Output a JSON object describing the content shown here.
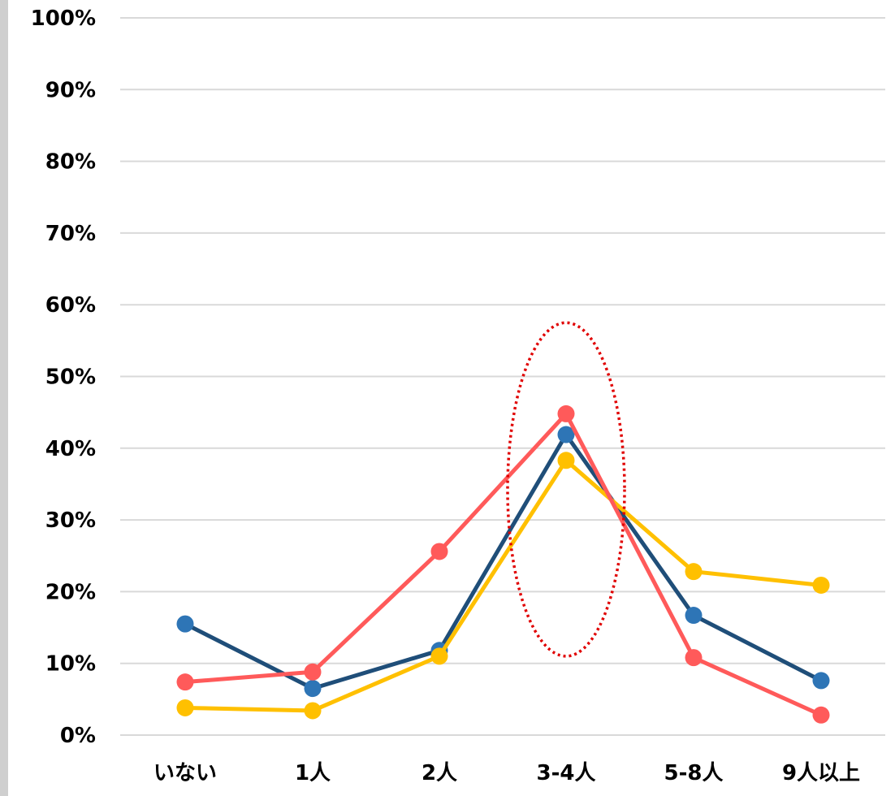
{
  "chart_data": {
    "type": "line",
    "title": "",
    "xlabel": "",
    "ylabel": "",
    "categories": [
      "いない",
      "1人",
      "2人",
      "3-4人",
      "5-8人",
      "9人以上"
    ],
    "ylim": [
      0,
      100
    ],
    "yticks": [
      0,
      10,
      20,
      30,
      40,
      50,
      60,
      70,
      80,
      90,
      100
    ],
    "ytick_labels": [
      "0%",
      "10%",
      "20%",
      "30%",
      "40%",
      "50%",
      "60%",
      "70%",
      "80%",
      "90%",
      "100%"
    ],
    "grid": true,
    "legend": "none",
    "series": [
      {
        "line_color": "#1f4e79",
        "marker_color": "#2e75b6",
        "values": [
          15.5,
          6.5,
          11.8,
          41.9,
          16.7,
          7.6
        ]
      },
      {
        "line_color": "#ffc000",
        "marker_color": "#ffc000",
        "values": [
          3.8,
          3.4,
          11.0,
          38.3,
          22.8,
          20.9
        ]
      },
      {
        "line_color": "#ff5a5a",
        "marker_color": "#ff5a5a",
        "values": [
          7.4,
          8.8,
          25.6,
          44.8,
          10.8,
          2.8
        ]
      }
    ],
    "annotations": [
      {
        "type": "dotted-ellipse",
        "color": "#e00000",
        "category": "3-4人",
        "y_range": [
          11,
          57.5
        ]
      }
    ]
  }
}
